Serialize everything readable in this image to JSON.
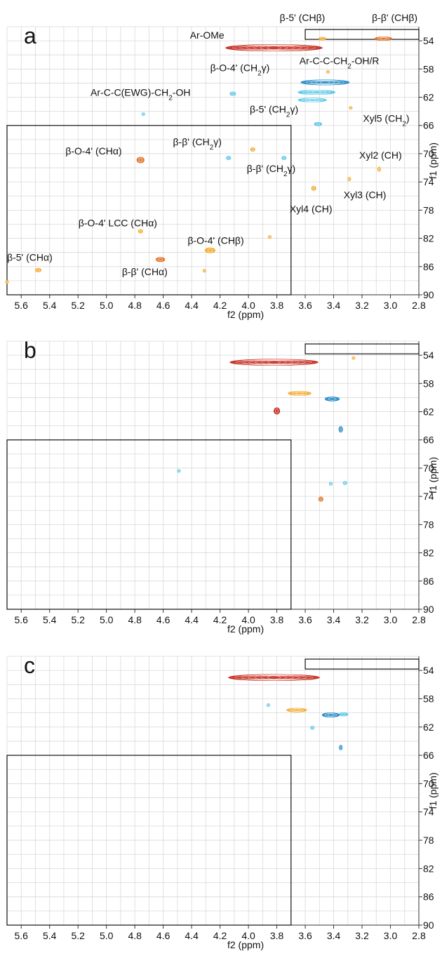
{
  "chart_data": [
    {
      "type": "contour",
      "panel_label": "a",
      "xlabel": "f2 (ppm)",
      "ylabel": "f1 (ppm)",
      "x_ticks": [
        "5.6",
        "5.4",
        "5.2",
        "5.0",
        "4.8",
        "4.6",
        "4.4",
        "4.2",
        "4.0",
        "3.8",
        "3.6",
        "3.4",
        "3.2",
        "3.0",
        "2.8"
      ],
      "y_ticks": [
        "54",
        "58",
        "62",
        "66",
        "70",
        "74",
        "78",
        "82",
        "86",
        "90"
      ],
      "xlim": [
        5.7,
        2.8
      ],
      "ylim": [
        52,
        90
      ],
      "grid": true,
      "boxes": [
        {
          "x": [
            3.6,
            2.8
          ],
          "y": [
            52.4,
            53.8
          ]
        },
        {
          "x": [
            5.7,
            3.7
          ],
          "y": [
            66,
            90
          ]
        }
      ],
      "peaks": [
        {
          "x": 3.82,
          "y": 55.0,
          "w": 0.68,
          "h": 0.9,
          "color": "#c42010"
        },
        {
          "x": 3.46,
          "y": 59.9,
          "w": 0.34,
          "h": 0.7,
          "color": "#1c86c6"
        },
        {
          "x": 3.52,
          "y": 61.3,
          "w": 0.26,
          "h": 0.6,
          "color": "#50c4e6"
        },
        {
          "x": 3.55,
          "y": 62.4,
          "w": 0.2,
          "h": 0.5,
          "color": "#50c4e6"
        },
        {
          "x": 3.48,
          "y": 53.7,
          "w": 0.05,
          "h": 0.4,
          "color": "#f5a623"
        },
        {
          "x": 3.05,
          "y": 53.7,
          "w": 0.12,
          "h": 0.5,
          "color": "#e06a1b"
        },
        {
          "x": 4.11,
          "y": 61.5,
          "w": 0.04,
          "h": 0.5,
          "color": "#50c4e6"
        },
        {
          "x": 4.74,
          "y": 64.4,
          "w": 0.02,
          "h": 0.3,
          "color": "#50c4e6"
        },
        {
          "x": 4.76,
          "y": 70.9,
          "w": 0.05,
          "h": 0.8,
          "color": "#e06a1b"
        },
        {
          "x": 4.14,
          "y": 70.6,
          "w": 0.03,
          "h": 0.5,
          "color": "#50c4e6"
        },
        {
          "x": 3.97,
          "y": 69.4,
          "w": 0.03,
          "h": 0.5,
          "color": "#f5a623"
        },
        {
          "x": 3.75,
          "y": 70.6,
          "w": 0.03,
          "h": 0.5,
          "color": "#50c4e6"
        },
        {
          "x": 3.51,
          "y": 65.8,
          "w": 0.05,
          "h": 0.5,
          "color": "#50c4e6"
        },
        {
          "x": 3.08,
          "y": 72.2,
          "w": 0.02,
          "h": 0.6,
          "color": "#f5a623"
        },
        {
          "x": 3.29,
          "y": 73.6,
          "w": 0.02,
          "h": 0.5,
          "color": "#f5a623"
        },
        {
          "x": 3.54,
          "y": 74.9,
          "w": 0.03,
          "h": 0.6,
          "color": "#f5a623"
        },
        {
          "x": 4.76,
          "y": 81.0,
          "w": 0.03,
          "h": 0.5,
          "color": "#f5a623"
        },
        {
          "x": 4.27,
          "y": 83.7,
          "w": 0.07,
          "h": 0.7,
          "color": "#f5a623"
        },
        {
          "x": 4.62,
          "y": 85.0,
          "w": 0.06,
          "h": 0.6,
          "color": "#e06a1b"
        },
        {
          "x": 4.31,
          "y": 86.6,
          "w": 0.02,
          "h": 0.3,
          "color": "#f5a623"
        },
        {
          "x": 5.48,
          "y": 86.5,
          "w": 0.04,
          "h": 0.5,
          "color": "#f5a623"
        },
        {
          "x": 5.7,
          "y": 88.2,
          "w": 0.02,
          "h": 0.4,
          "color": "#f5a623"
        },
        {
          "x": 3.85,
          "y": 81.8,
          "w": 0.01,
          "h": 0.3,
          "color": "#f5a623"
        },
        {
          "x": 3.44,
          "y": 58.4,
          "w": 0.02,
          "h": 0.3,
          "color": "#f5a623"
        },
        {
          "x": 3.28,
          "y": 63.5,
          "w": 0.02,
          "h": 0.3,
          "color": "#f5a623"
        }
      ],
      "annotations": [
        {
          "text": "β-5' (CHβ)",
          "x": 3.62,
          "y": 51.2,
          "anchor": "middle"
        },
        {
          "text": "β-β' (CHβ)",
          "x": 2.97,
          "y": 51.2,
          "anchor": "middle"
        },
        {
          "text": "Ar-OMe",
          "x": 4.17,
          "y": 53.7,
          "anchor": "end"
        },
        {
          "text": "β-O-4' (CH2γ)",
          "x": 4.06,
          "y": 58.3,
          "anchor": "middle",
          "sub": "2",
          "after": "γ)"
        },
        {
          "text": "Ar-C-C-CH2-OH/R",
          "x": 3.36,
          "y": 57.3,
          "anchor": "middle"
        },
        {
          "text": "Ar-C-C(EWG)-CH2-OH",
          "x": 4.76,
          "y": 61.8,
          "anchor": "middle"
        },
        {
          "text": "β-5' (CH2γ)",
          "x": 3.82,
          "y": 64.2,
          "anchor": "middle"
        },
        {
          "text": "Xyl5 (CH2)",
          "x": 3.03,
          "y": 65.5,
          "anchor": "middle"
        },
        {
          "text": "β-β' (CH2γ)",
          "x": 4.36,
          "y": 68.8,
          "anchor": "middle"
        },
        {
          "text": "β-O-4' (CHα)",
          "x": 5.09,
          "y": 70.1,
          "anchor": "middle"
        },
        {
          "text": "Xyl2 (CH)",
          "x": 3.07,
          "y": 70.7,
          "anchor": "middle"
        },
        {
          "text": "β-β' (CH2γ)",
          "x": 3.84,
          "y": 72.6,
          "anchor": "middle"
        },
        {
          "text": "Xyl3 (CH)",
          "x": 3.18,
          "y": 76.3,
          "anchor": "middle"
        },
        {
          "text": "Xyl4 (CH)",
          "x": 3.56,
          "y": 78.3,
          "anchor": "middle"
        },
        {
          "text": "β-O-4' LCC (CHα)",
          "x": 4.92,
          "y": 80.3,
          "anchor": "middle"
        },
        {
          "text": "β-O-4' (CHβ)",
          "x": 4.23,
          "y": 82.8,
          "anchor": "middle"
        },
        {
          "text": "β-5' (CHα)",
          "x": 5.54,
          "y": 85.2,
          "anchor": "middle"
        },
        {
          "text": "β-β' (CHα)",
          "x": 4.73,
          "y": 87.2,
          "anchor": "middle"
        }
      ]
    },
    {
      "type": "contour",
      "panel_label": "b",
      "xlabel": "f2 (ppm)",
      "ylabel": "f1 (ppm)",
      "x_ticks": [
        "5.6",
        "5.4",
        "5.2",
        "5.0",
        "4.8",
        "4.6",
        "4.4",
        "4.2",
        "4.0",
        "3.8",
        "3.6",
        "3.4",
        "3.2",
        "3.0",
        "2.8"
      ],
      "y_ticks": [
        "54",
        "58",
        "62",
        "66",
        "70",
        "74",
        "78",
        "82",
        "86",
        "90"
      ],
      "xlim": [
        5.7,
        2.8
      ],
      "ylim": [
        52,
        90
      ],
      "grid": true,
      "boxes": [
        {
          "x": [
            3.6,
            2.8
          ],
          "y": [
            52.4,
            53.8
          ]
        },
        {
          "x": [
            5.7,
            3.7
          ],
          "y": [
            66,
            90
          ]
        }
      ],
      "peaks": [
        {
          "x": 3.82,
          "y": 55.0,
          "w": 0.62,
          "h": 0.85,
          "color": "#c42010"
        },
        {
          "x": 3.64,
          "y": 59.4,
          "w": 0.16,
          "h": 0.55,
          "color": "#f5a623"
        },
        {
          "x": 3.41,
          "y": 60.2,
          "w": 0.1,
          "h": 0.55,
          "color": "#1c86c6"
        },
        {
          "x": 3.8,
          "y": 61.9,
          "w": 0.04,
          "h": 0.9,
          "color": "#c42010"
        },
        {
          "x": 3.35,
          "y": 64.5,
          "w": 0.025,
          "h": 0.8,
          "color": "#1c86c6"
        },
        {
          "x": 3.42,
          "y": 72.2,
          "w": 0.02,
          "h": 0.45,
          "color": "#50c4e6"
        },
        {
          "x": 3.32,
          "y": 72.1,
          "w": 0.025,
          "h": 0.45,
          "color": "#50c4e6"
        },
        {
          "x": 3.49,
          "y": 74.4,
          "w": 0.03,
          "h": 0.6,
          "color": "#e06a1b"
        },
        {
          "x": 4.49,
          "y": 70.4,
          "w": 0.006,
          "h": 0.3,
          "color": "#50c4e6"
        },
        {
          "x": 3.26,
          "y": 54.4,
          "w": 0.02,
          "h": 0.3,
          "color": "#f5a623"
        }
      ],
      "annotations": []
    },
    {
      "type": "contour",
      "panel_label": "c",
      "xlabel": "f2 (ppm)",
      "ylabel": "f1 (ppm)",
      "x_ticks": [
        "5.6",
        "5.4",
        "5.2",
        "5.0",
        "4.8",
        "4.6",
        "4.4",
        "4.2",
        "4.0",
        "3.8",
        "3.6",
        "3.4",
        "3.2",
        "3.0",
        "2.8"
      ],
      "y_ticks": [
        "54",
        "58",
        "62",
        "66",
        "70",
        "74",
        "78",
        "82",
        "86",
        "90"
      ],
      "xlim": [
        5.7,
        2.8
      ],
      "ylim": [
        52,
        90
      ],
      "grid": true,
      "boxes": [
        {
          "x": [
            3.6,
            2.8
          ],
          "y": [
            52.4,
            53.8
          ]
        },
        {
          "x": [
            5.7,
            3.7
          ],
          "y": [
            66,
            90
          ]
        }
      ],
      "peaks": [
        {
          "x": 3.82,
          "y": 55.0,
          "w": 0.64,
          "h": 0.85,
          "color": "#c42010"
        },
        {
          "x": 3.66,
          "y": 59.6,
          "w": 0.14,
          "h": 0.5,
          "color": "#f5a623"
        },
        {
          "x": 3.42,
          "y": 60.3,
          "w": 0.12,
          "h": 0.6,
          "color": "#1c86c6"
        },
        {
          "x": 3.33,
          "y": 60.2,
          "w": 0.06,
          "h": 0.45,
          "color": "#50c4e6"
        },
        {
          "x": 3.86,
          "y": 58.9,
          "w": 0.01,
          "h": 0.4,
          "color": "#50c4e6"
        },
        {
          "x": 3.55,
          "y": 62.1,
          "w": 0.025,
          "h": 0.45,
          "color": "#50c4e6"
        },
        {
          "x": 3.35,
          "y": 64.9,
          "w": 0.02,
          "h": 0.65,
          "color": "#1c86c6"
        }
      ],
      "annotations": []
    }
  ]
}
